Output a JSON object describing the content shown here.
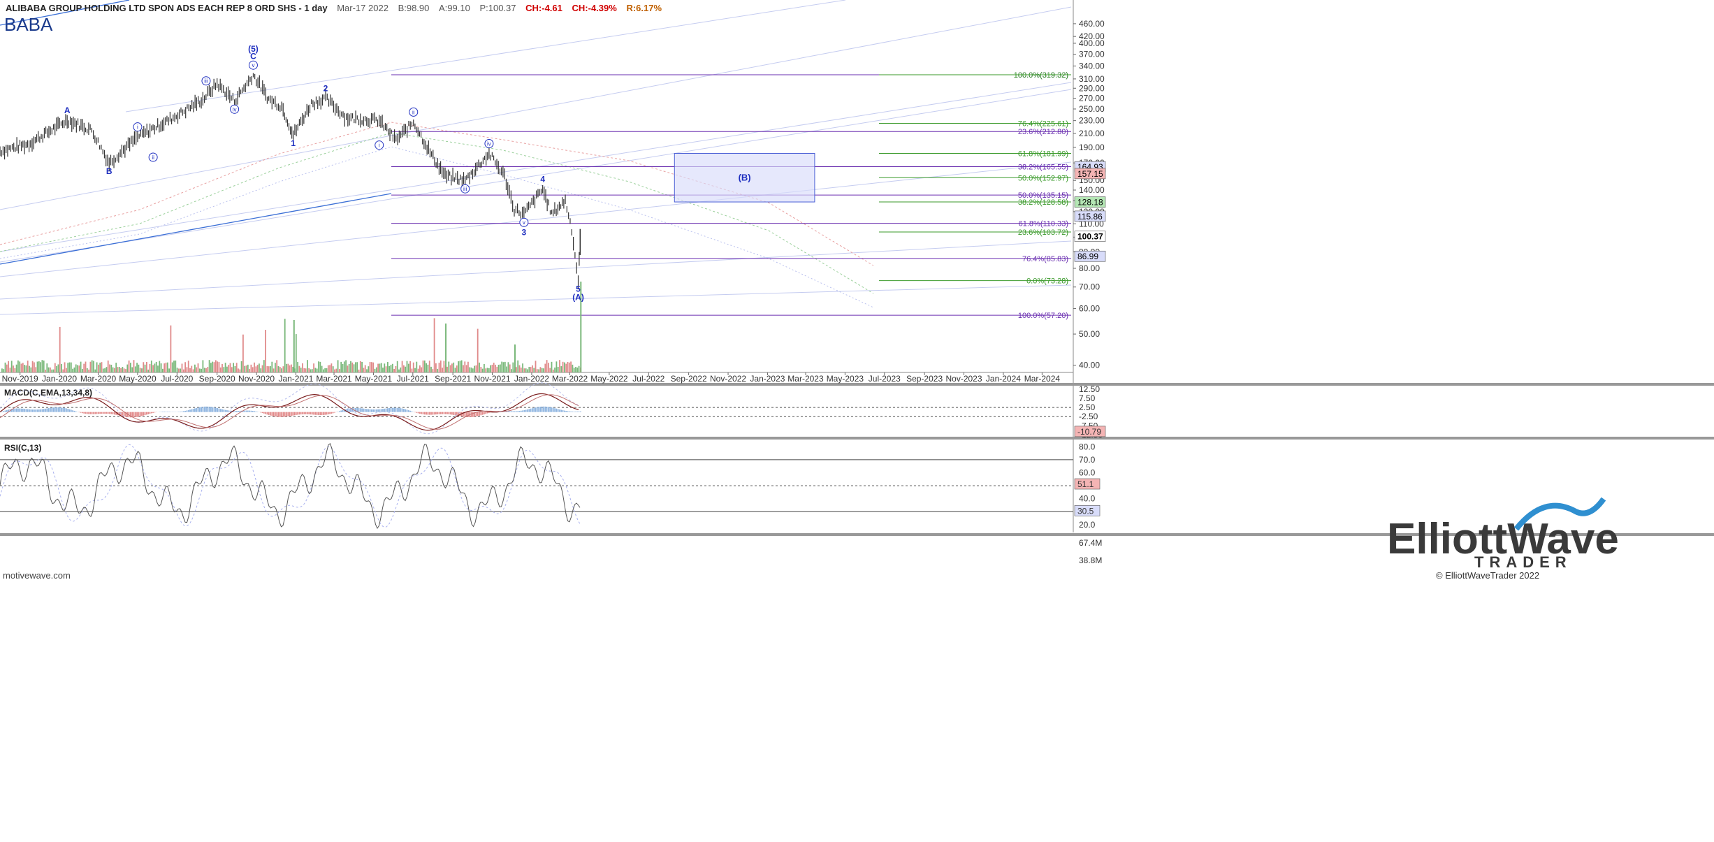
{
  "header": {
    "title": "ALIBABA GROUP HOLDING LTD SPON ADS EACH REP 8 ORD SHS - 1 day",
    "date": "Mar-17 2022",
    "b": "B:98.90",
    "a": "A:99.10",
    "p": "P:100.37",
    "ch_abs": "CH:-4.61",
    "ch_pct": "CH:-4.39%",
    "r": "R:6.17%"
  },
  "ticker": "BABA",
  "source_watermark": "motivewave.com",
  "logo": {
    "line1": "ElliottWave",
    "line2": "TRADER",
    "copyright": "© ElliottWaveTrader 2022"
  },
  "colors": {
    "price_bar": "#333333",
    "fib_retrace": "#6a2fb0",
    "fib_ext": "#3a9a2a",
    "wave_label": "#1f2fc0",
    "trend_line": "#3b6fd6",
    "vol_up": "#7ab87a",
    "vol_down": "#e08a8a",
    "target_box": "#d8dcfa"
  },
  "chart_data": [
    {
      "type": "line",
      "name": "price-panel",
      "scale": "log",
      "ylim": [
        38,
        545
      ],
      "y_ticks": [
        "460.00",
        "420.00",
        "400.00",
        "370.00",
        "340.00",
        "310.00",
        "290.00",
        "270.00",
        "250.00",
        "230.00",
        "210.00",
        "190.00",
        "170.00",
        "150.00",
        "140.00",
        "130.00",
        "120.00",
        "110.00",
        "100.00",
        "90.00",
        "80.00",
        "70.00",
        "60.00",
        "50.00",
        "40.00"
      ],
      "x_labels": [
        "Nov-2019",
        "Jan-2020",
        "Mar-2020",
        "May-2020",
        "Jul-2020",
        "Sep-2020",
        "Nov-2020",
        "Jan-2021",
        "Mar-2021",
        "May-2021",
        "Jul-2021",
        "Sep-2021",
        "Nov-2021",
        "Jan-2022",
        "Mar-2022",
        "May-2022",
        "Jul-2022",
        "Sep-2022",
        "Nov-2022",
        "Jan-2023",
        "Mar-2023",
        "May-2023",
        "Jul-2023",
        "Sep-2023",
        "Nov-2023",
        "Jan-2024",
        "Mar-2024"
      ],
      "price_path": [
        [
          "2019-10-01",
          185
        ],
        [
          "2019-11-15",
          195
        ],
        [
          "2020-01-13",
          231
        ],
        [
          "2020-02-20",
          215
        ],
        [
          "2020-03-18",
          170
        ],
        [
          "2020-05-01",
          205
        ],
        [
          "2020-06-25",
          235
        ],
        [
          "2020-08-10",
          268
        ],
        [
          "2020-09-01",
          300
        ],
        [
          "2020-09-28",
          265
        ],
        [
          "2020-10-27",
          319
        ],
        [
          "2020-11-20",
          268
        ],
        [
          "2020-12-10",
          255
        ],
        [
          "2020-12-28",
          208
        ],
        [
          "2021-01-25",
          260
        ],
        [
          "2021-02-16",
          270
        ],
        [
          "2021-03-20",
          235
        ],
        [
          "2021-05-10",
          230
        ],
        [
          "2021-06-05",
          200
        ],
        [
          "2021-07-02",
          228
        ],
        [
          "2021-07-30",
          180
        ],
        [
          "2021-08-20",
          155
        ],
        [
          "2021-09-20",
          150
        ],
        [
          "2021-10-27",
          182
        ],
        [
          "2021-11-20",
          155
        ],
        [
          "2021-12-05",
          122
        ],
        [
          "2021-12-20",
          118
        ],
        [
          "2022-01-18",
          141
        ],
        [
          "2022-02-01",
          118
        ],
        [
          "2022-02-22",
          130
        ],
        [
          "2022-03-04",
          106
        ],
        [
          "2022-03-14",
          73.28
        ],
        [
          "2022-03-17",
          100.37
        ]
      ],
      "current_price": "100.37",
      "fib_retracement": [
        {
          "label": "100.0%(319.32)",
          "value": 319.32
        },
        {
          "label": "23.6%(212.80)",
          "value": 212.8
        },
        {
          "label": "38.2%(165.55)",
          "value": 165.55
        },
        {
          "label": "50.0%(135.15)",
          "value": 135.15
        },
        {
          "label": "61.8%(110.33)",
          "value": 110.33
        },
        {
          "label": "76.4%(85.83)",
          "value": 85.83
        },
        {
          "label": "100.0%(57.20)",
          "value": 57.2
        }
      ],
      "fib_extension": [
        {
          "label": "100.0%(319.32)",
          "value": 319.32
        },
        {
          "label": "76.4%(225.61)",
          "value": 225.61
        },
        {
          "label": "61.8%(181.99)",
          "value": 181.99
        },
        {
          "label": "50.0%(152.97)",
          "value": 152.97
        },
        {
          "label": "38.2%(128.58)",
          "value": 128.58
        },
        {
          "label": "23.6%(103.72)",
          "value": 103.72
        },
        {
          "label": "0.0%(73.28)",
          "value": 73.28
        }
      ],
      "price_tags": [
        {
          "label": "164.93",
          "value": 164.93,
          "color": "#d8dcfa"
        },
        {
          "label": "157.15",
          "value": 157.15,
          "color": "#f4b4b4"
        },
        {
          "label": "128.18",
          "value": 128.18,
          "color": "#b4e6b4"
        },
        {
          "label": "115.86",
          "value": 115.86,
          "color": "#d8dcfa"
        },
        {
          "label": "100.37",
          "value": 100.37,
          "color": "#ffffff"
        },
        {
          "label": "86.99",
          "value": 86.99,
          "color": "#d8dcfa"
        }
      ],
      "volume_tags": [
        "67.4M",
        "38.8M"
      ],
      "target_box": {
        "label": "(B)",
        "x0": "2022-08-10",
        "x1": "2023-03-15",
        "y0": 128.58,
        "y1": 181.99
      },
      "wave_labels": [
        {
          "text": "A",
          "x": "2020-01-13",
          "y": 231,
          "pos": "above",
          "circled": false
        },
        {
          "text": "B",
          "x": "2020-03-18",
          "y": 170,
          "pos": "below",
          "circled": false
        },
        {
          "text": "i",
          "x": "2020-05-01",
          "y": 205,
          "pos": "above",
          "circled": true
        },
        {
          "text": "ii",
          "x": "2020-05-25",
          "y": 188,
          "pos": "below",
          "circled": true
        },
        {
          "text": "iii",
          "x": "2020-08-15",
          "y": 285,
          "pos": "above",
          "circled": true
        },
        {
          "text": "iv",
          "x": "2020-09-28",
          "y": 265,
          "pos": "below",
          "circled": true
        },
        {
          "text": "v",
          "x": "2020-10-27",
          "y": 319,
          "pos": "above",
          "circled": true
        },
        {
          "text": "C",
          "x": "2020-10-27",
          "y": 340,
          "pos": "above",
          "circled": false
        },
        {
          "text": "(5)",
          "x": "2020-10-27",
          "y": 358,
          "pos": "above",
          "circled": false
        },
        {
          "text": "1",
          "x": "2020-12-28",
          "y": 208,
          "pos": "below",
          "circled": false
        },
        {
          "text": "2",
          "x": "2021-02-16",
          "y": 270,
          "pos": "above",
          "circled": false
        },
        {
          "text": "i",
          "x": "2021-05-10",
          "y": 205,
          "pos": "below",
          "circled": true
        },
        {
          "text": "ii",
          "x": "2021-07-02",
          "y": 228,
          "pos": "above",
          "circled": true
        },
        {
          "text": "iii",
          "x": "2021-09-20",
          "y": 150,
          "pos": "below",
          "circled": true
        },
        {
          "text": "iv",
          "x": "2021-10-27",
          "y": 182,
          "pos": "above",
          "circled": true
        },
        {
          "text": "v",
          "x": "2021-12-20",
          "y": 118,
          "pos": "below",
          "circled": true
        },
        {
          "text": "3",
          "x": "2021-12-20",
          "y": 110,
          "pos": "below",
          "circled": false
        },
        {
          "text": "4",
          "x": "2022-01-18",
          "y": 141,
          "pos": "above",
          "circled": false
        },
        {
          "text": "5",
          "x": "2022-03-14",
          "y": 73.28,
          "pos": "below",
          "circled": false
        },
        {
          "text": "(A)",
          "x": "2022-03-14",
          "y": 69,
          "pos": "below",
          "circled": false
        }
      ]
    },
    {
      "type": "line",
      "name": "MACD(C,EMA,13,34,8)",
      "ylim": [
        -13.5,
        14
      ],
      "y_ticks": [
        "12.50",
        "7.50",
        "2.50",
        "-2.50",
        "-7.50",
        "-12.50"
      ],
      "current": "-10.79"
    },
    {
      "type": "line",
      "name": "RSI(C,13)",
      "ylim": [
        14,
        85
      ],
      "y_ticks": [
        "80.0",
        "70.0",
        "60.0",
        "50.0",
        "40.0",
        "30.0",
        "20.0"
      ],
      "current_tags": [
        "51.1",
        "30.5"
      ]
    }
  ]
}
